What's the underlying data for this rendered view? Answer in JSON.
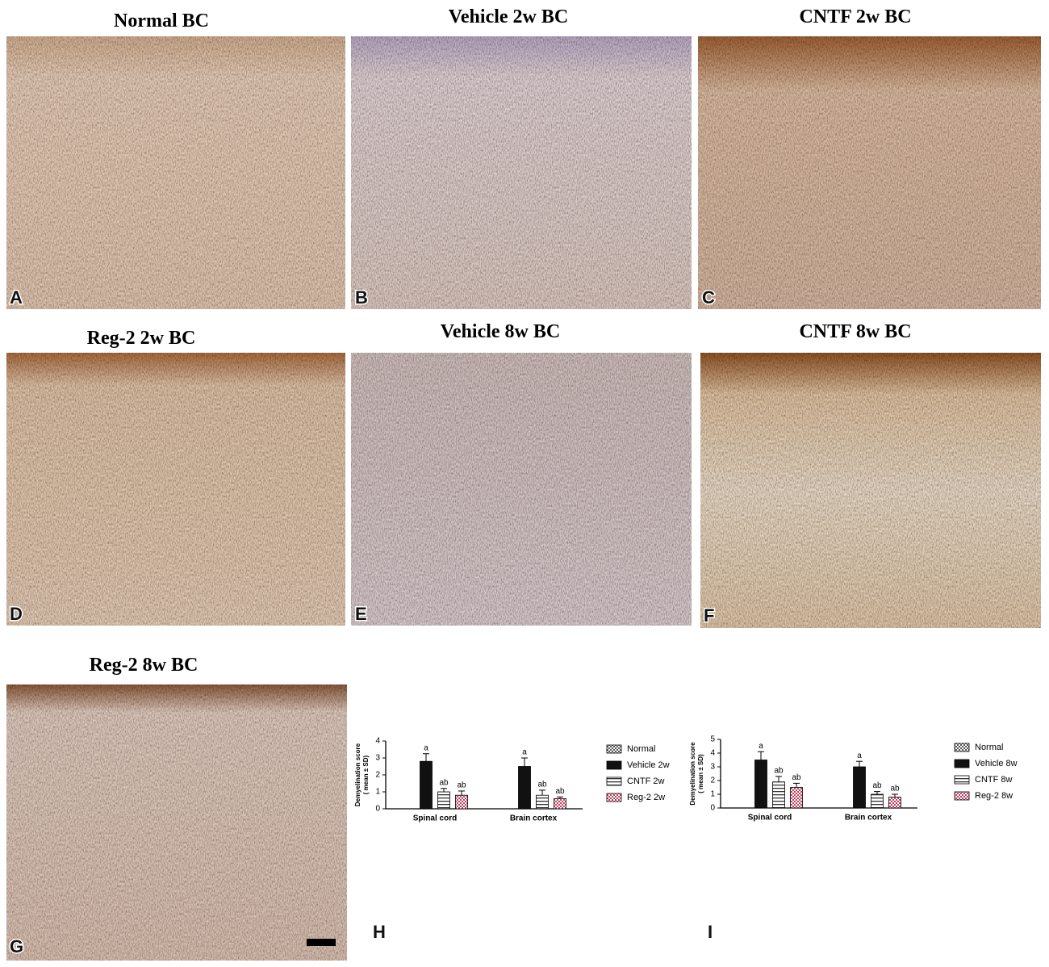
{
  "panels": [
    {
      "title": "Normal BC",
      "letter": "A"
    },
    {
      "title": "Vehicle 2w BC",
      "letter": "B"
    },
    {
      "title": "CNTF 2w BC",
      "letter": "C"
    },
    {
      "title": "Reg-2 2w BC",
      "letter": "D"
    },
    {
      "title": "Vehicle 8w BC",
      "letter": "E"
    },
    {
      "title": "CNTF 8w BC",
      "letter": "F"
    },
    {
      "title": "Reg-2 8w BC",
      "letter": "G"
    }
  ],
  "chart_data": [
    {
      "type": "bar",
      "label": "H",
      "ylabel": [
        "Demyelination score",
        "( mean ± SD)"
      ],
      "categories": [
        "Spinal cord",
        "Brain cortex"
      ],
      "ylim": [
        0,
        4
      ],
      "yticks": [
        0,
        1,
        2,
        3,
        4
      ],
      "series": [
        {
          "name": "Normal",
          "color": "#555555",
          "pattern": "checker",
          "values": [
            0,
            0
          ],
          "errors": [
            0,
            0
          ]
        },
        {
          "name": "Vehicle 2w",
          "color": "#111111",
          "pattern": "solid",
          "values": [
            2.8,
            2.5
          ],
          "errors": [
            0.45,
            0.5
          ],
          "significance": [
            "a",
            "a"
          ]
        },
        {
          "name": "CNTF 2w",
          "color": "#333333",
          "pattern": "stripes",
          "values": [
            1.0,
            0.8
          ],
          "errors": [
            0.2,
            0.3
          ],
          "significance": [
            "ab",
            "ab"
          ]
        },
        {
          "name": "Reg-2  2w",
          "color": "#c0405a",
          "pattern": "checker",
          "values": [
            0.8,
            0.6
          ],
          "errors": [
            0.25,
            0.1
          ],
          "significance": [
            "ab",
            "ab"
          ]
        }
      ]
    },
    {
      "type": "bar",
      "label": "I",
      "ylabel": [
        "Demyelination score",
        "( mean ± SD)"
      ],
      "categories": [
        "Spinal cord",
        "Brain cortex"
      ],
      "ylim": [
        0,
        5
      ],
      "yticks": [
        0,
        1,
        2,
        3,
        4,
        5
      ],
      "series": [
        {
          "name": "Normal",
          "color": "#555555",
          "pattern": "checker",
          "values": [
            0,
            0
          ],
          "errors": [
            0,
            0
          ]
        },
        {
          "name": "Vehicle 8w",
          "color": "#111111",
          "pattern": "solid",
          "values": [
            3.5,
            3.0
          ],
          "errors": [
            0.6,
            0.4
          ],
          "significance": [
            "a",
            "a"
          ]
        },
        {
          "name": "CNTF 8w",
          "color": "#333333",
          "pattern": "stripes",
          "values": [
            1.9,
            1.0
          ],
          "errors": [
            0.4,
            0.2
          ],
          "significance": [
            "ab",
            "ab"
          ]
        },
        {
          "name": "Reg-2  8w",
          "color": "#c0405a",
          "pattern": "checker",
          "values": [
            1.5,
            0.8
          ],
          "errors": [
            0.3,
            0.2
          ],
          "significance": [
            "ab",
            "ab"
          ]
        }
      ]
    }
  ]
}
